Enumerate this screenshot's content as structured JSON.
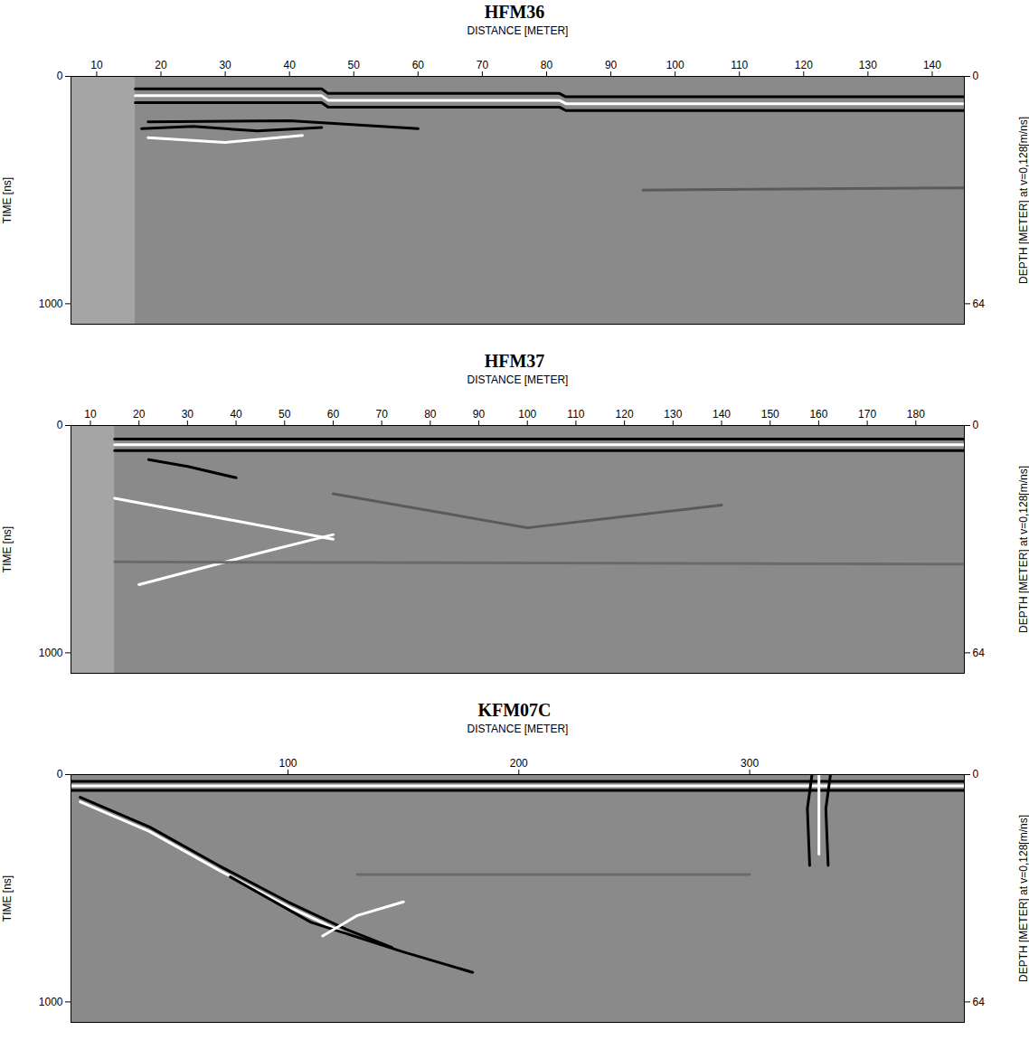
{
  "chart_data": [
    {
      "type": "radargram",
      "title": "HFM36",
      "x_label": "DISTANCE [METER]",
      "y_label": "TIME [ns]",
      "y2_label": "DEPTH [METER] at v=0,128[m/ns]",
      "xlim": [
        6,
        145
      ],
      "xticks": [
        10,
        20,
        30,
        40,
        50,
        60,
        70,
        80,
        90,
        100,
        110,
        120,
        130,
        140
      ],
      "ylim": [
        0,
        1090
      ],
      "yticks": [
        0,
        1000
      ],
      "y2lim": [
        0,
        69.76
      ],
      "y2ticks": [
        0,
        64
      ],
      "record_start": 16,
      "reflectors": [
        {
          "color": "#000000",
          "points": [
            [
              16,
              55
            ],
            [
              45,
              55
            ],
            [
              46,
              75
            ],
            [
              82,
              75
            ],
            [
              83,
              90
            ],
            [
              145,
              90
            ]
          ]
        },
        {
          "color": "#ffffff",
          "points": [
            [
              16,
              85
            ],
            [
              45,
              85
            ],
            [
              46,
              105
            ],
            [
              82,
              105
            ],
            [
              83,
              120
            ],
            [
              145,
              120
            ]
          ]
        },
        {
          "color": "#000000",
          "points": [
            [
              16,
              115
            ],
            [
              45,
              115
            ],
            [
              46,
              135
            ],
            [
              82,
              135
            ],
            [
              83,
              150
            ],
            [
              145,
              150
            ]
          ]
        },
        {
          "color": "#000000",
          "points": [
            [
              18,
              200
            ],
            [
              40,
              195
            ],
            [
              60,
              230
            ]
          ]
        },
        {
          "color": "#000000",
          "points": [
            [
              17,
              230
            ],
            [
              25,
              220
            ],
            [
              35,
              240
            ],
            [
              45,
              225
            ]
          ]
        },
        {
          "color": "#ffffff",
          "points": [
            [
              18,
              270
            ],
            [
              30,
              290
            ],
            [
              42,
              260
            ]
          ]
        },
        {
          "color": "#5a5a5a",
          "points": [
            [
              95,
              500
            ],
            [
              145,
              490
            ]
          ]
        }
      ]
    },
    {
      "type": "radargram",
      "title": "HFM37",
      "x_label": "DISTANCE [METER]",
      "y_label": "TIME [ns]",
      "y2_label": "DEPTH [METER] at v=0,128[m/ns]",
      "xlim": [
        6,
        190
      ],
      "xticks": [
        10,
        20,
        30,
        40,
        50,
        60,
        70,
        80,
        90,
        100,
        110,
        120,
        130,
        140,
        150,
        160,
        170,
        180
      ],
      "ylim": [
        0,
        1090
      ],
      "yticks": [
        0,
        1000
      ],
      "y2lim": [
        0,
        69.76
      ],
      "y2ticks": [
        0,
        64
      ],
      "record_start": 15,
      "reflectors": [
        {
          "color": "#000000",
          "points": [
            [
              15,
              60
            ],
            [
              190,
              60
            ]
          ]
        },
        {
          "color": "#ffffff",
          "points": [
            [
              15,
              85
            ],
            [
              190,
              85
            ]
          ]
        },
        {
          "color": "#000000",
          "points": [
            [
              15,
              110
            ],
            [
              190,
              110
            ]
          ]
        },
        {
          "color": "#000000",
          "points": [
            [
              22,
              150
            ],
            [
              30,
              180
            ],
            [
              40,
              230
            ]
          ]
        },
        {
          "color": "#ffffff",
          "points": [
            [
              15,
              320
            ],
            [
              40,
              420
            ],
            [
              60,
              500
            ]
          ]
        },
        {
          "color": "#ffffff",
          "points": [
            [
              20,
              700
            ],
            [
              45,
              560
            ],
            [
              60,
              480
            ]
          ]
        },
        {
          "color": "#5a5a5a",
          "points": [
            [
              60,
              300
            ],
            [
              100,
              450
            ],
            [
              140,
              350
            ]
          ]
        },
        {
          "color": "#6a6a6a",
          "points": [
            [
              15,
              600
            ],
            [
              190,
              610
            ]
          ]
        }
      ]
    },
    {
      "type": "radargram",
      "title": "KFM07C",
      "x_label": "DISTANCE [METER]",
      "y_label": "TIME [ns]",
      "y2_label": "DEPTH [METER] at v=0,128[m/ns]",
      "xlim": [
        6,
        393
      ],
      "xticks": [
        100,
        200,
        300
      ],
      "ylim": [
        0,
        1090
      ],
      "yticks": [
        0,
        1000
      ],
      "y2lim": [
        0,
        69.76
      ],
      "y2ticks": [
        0,
        64
      ],
      "reflectors": [
        {
          "color": "#000000",
          "points": [
            [
              6,
              30
            ],
            [
              393,
              30
            ]
          ]
        },
        {
          "color": "#ffffff",
          "points": [
            [
              6,
              50
            ],
            [
              393,
              50
            ]
          ]
        },
        {
          "color": "#000000",
          "points": [
            [
              6,
              70
            ],
            [
              393,
              70
            ]
          ]
        },
        {
          "color": "#000000",
          "points": [
            [
              10,
              100
            ],
            [
              40,
              230
            ],
            [
              70,
              400
            ],
            [
              100,
              560
            ],
            [
              125,
              680
            ],
            [
              145,
              760
            ]
          ]
        },
        {
          "color": "#ffffff",
          "points": [
            [
              10,
              120
            ],
            [
              40,
              250
            ],
            [
              70,
              420
            ],
            [
              100,
              580
            ],
            [
              125,
              700
            ]
          ]
        },
        {
          "color": "#000000",
          "points": [
            [
              75,
              450
            ],
            [
              110,
              650
            ],
            [
              150,
              780
            ],
            [
              180,
              870
            ]
          ]
        },
        {
          "color": "#ffffff",
          "points": [
            [
              115,
              710
            ],
            [
              130,
              620
            ],
            [
              150,
              560
            ]
          ]
        },
        {
          "color": "#000000",
          "points": [
            [
              327,
              0
            ],
            [
              325,
              150
            ],
            [
              326,
              400
            ]
          ]
        },
        {
          "color": "#000000",
          "points": [
            [
              335,
              0
            ],
            [
              333,
              150
            ],
            [
              334,
              400
            ]
          ]
        },
        {
          "color": "#ffffff",
          "points": [
            [
              330,
              0
            ],
            [
              330,
              350
            ]
          ]
        },
        {
          "color": "#6a6a6a",
          "points": [
            [
              130,
              440
            ],
            [
              300,
              440
            ]
          ]
        }
      ]
    }
  ]
}
